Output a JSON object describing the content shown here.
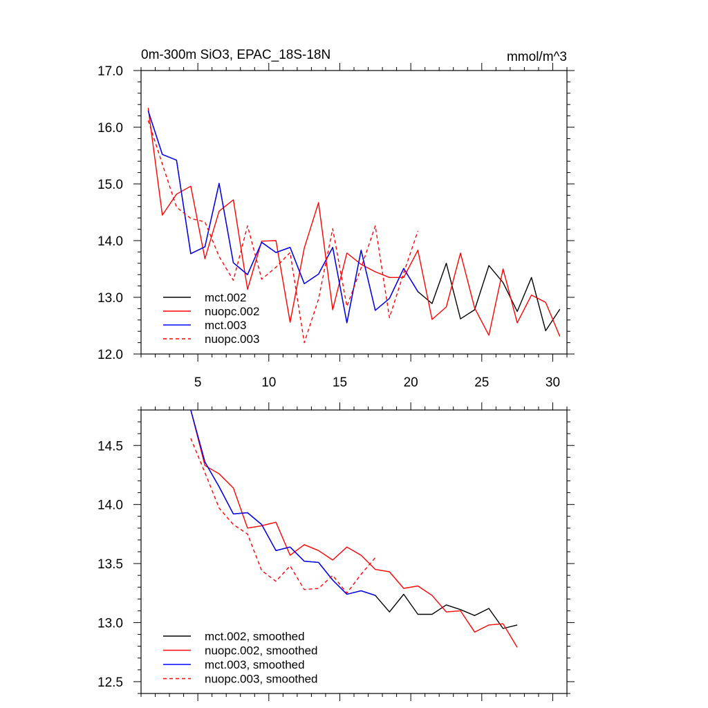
{
  "chart_data": [
    {
      "type": "line",
      "title": "0m-300m SiO3, EPAC_18S-18N",
      "units": "mmol/m^3",
      "xlim": [
        1,
        31
      ],
      "ylim": [
        12.0,
        17.0
      ],
      "xticks": [
        5,
        10,
        15,
        20,
        25,
        30
      ],
      "xtick_labels": [
        "5",
        "10",
        "15",
        "20",
        "25",
        "30"
      ],
      "yticks": [
        12.0,
        13.0,
        14.0,
        15.0,
        16.0,
        17.0
      ],
      "ytick_labels": [
        "12.0",
        "13.0",
        "14.0",
        "15.0",
        "16.0",
        "17.0"
      ],
      "legend": "bottom-left",
      "series": [
        {
          "name": "mct.002",
          "color": "#000000",
          "dash": "solid",
          "x": [
            1.5,
            2.5,
            3.5,
            4.5,
            5.5,
            6.5,
            7.5,
            8.5,
            9.5,
            10.5,
            11.5,
            12.5,
            13.5,
            14.5,
            15.5,
            16.5,
            17.5,
            18.5,
            19.5,
            20.5,
            21.5,
            22.5,
            23.5,
            24.5,
            25.5,
            26.5,
            27.5,
            28.5,
            29.5,
            30.5
          ],
          "values": [
            16.29,
            15.52,
            15.42,
            13.77,
            13.89,
            15.01,
            13.61,
            13.4,
            13.97,
            13.79,
            13.88,
            13.24,
            13.41,
            13.88,
            12.55,
            13.83,
            12.77,
            12.98,
            13.51,
            13.1,
            12.89,
            13.6,
            12.62,
            12.78,
            13.56,
            13.26,
            12.75,
            13.35,
            12.41,
            12.79
          ]
        },
        {
          "name": "nuopc.002",
          "color": "#ff0000",
          "dash": "solid",
          "x": [
            1.5,
            2.5,
            3.5,
            4.5,
            5.5,
            6.5,
            7.5,
            8.5,
            9.5,
            10.5,
            11.5,
            12.5,
            13.5,
            14.5,
            15.5,
            16.5,
            17.5,
            18.5,
            19.5,
            20.5,
            21.5,
            22.5,
            23.5,
            24.5,
            25.5,
            26.5,
            27.5,
            28.5,
            29.5,
            30.5
          ],
          "values": [
            16.34,
            14.45,
            14.82,
            14.96,
            13.68,
            14.52,
            14.72,
            13.14,
            13.99,
            14.0,
            12.56,
            13.87,
            14.67,
            12.78,
            13.78,
            13.58,
            13.45,
            13.35,
            13.35,
            13.83,
            12.61,
            12.83,
            13.78,
            12.81,
            12.33,
            13.5,
            12.55,
            13.04,
            12.91,
            12.31
          ]
        },
        {
          "name": "mct.003",
          "color": "#0000ff",
          "dash": "solid",
          "x": [
            1.5,
            2.5,
            3.5,
            4.5,
            5.5,
            6.5,
            7.5,
            8.5,
            9.5,
            10.5,
            11.5,
            12.5,
            13.5,
            14.5,
            15.5,
            16.5,
            17.5,
            18.5,
            19.5,
            20.5
          ],
          "values": [
            16.29,
            15.52,
            15.42,
            13.77,
            13.89,
            15.01,
            13.61,
            13.4,
            13.97,
            13.79,
            13.88,
            13.24,
            13.41,
            13.88,
            12.55,
            13.83,
            12.77,
            12.98,
            13.51,
            13.1
          ]
        },
        {
          "name": "nuopc.003",
          "color": "#ff0000",
          "dash": "dashed",
          "x": [
            1.5,
            2.5,
            3.5,
            4.5,
            5.5,
            6.5,
            7.5,
            8.5,
            9.5,
            10.5,
            11.5,
            12.5,
            13.5,
            14.5,
            15.5,
            16.5,
            17.5,
            18.5,
            19.5,
            20.5
          ],
          "values": [
            16.12,
            15.35,
            14.59,
            14.39,
            14.33,
            13.72,
            13.3,
            14.26,
            13.32,
            13.53,
            13.79,
            12.2,
            12.97,
            14.21,
            12.84,
            13.52,
            14.26,
            12.64,
            13.43,
            14.17
          ]
        }
      ]
    },
    {
      "type": "line",
      "title": "",
      "xlim": [
        1,
        31
      ],
      "ylim": [
        12.4,
        14.8
      ],
      "xticks": [
        5,
        10,
        15,
        20,
        25,
        30
      ],
      "yticks": [
        12.5,
        13.0,
        13.5,
        14.0,
        14.5
      ],
      "ytick_labels": [
        "12.5",
        "13.0",
        "13.5",
        "14.0",
        "14.5"
      ],
      "legend": "bottom-left",
      "series": [
        {
          "name": "mct.002, smoothed",
          "color": "#000000",
          "dash": "solid",
          "x": [
            4.5,
            5.5,
            6.5,
            7.5,
            8.5,
            9.5,
            10.5,
            11.5,
            12.5,
            13.5,
            14.5,
            15.5,
            16.5,
            17.5,
            18.5,
            19.5,
            20.5,
            21.5,
            22.5,
            23.5,
            24.5,
            25.5,
            26.5,
            27.5
          ],
          "values": [
            14.8,
            14.36,
            14.15,
            13.92,
            13.93,
            13.83,
            13.61,
            13.64,
            13.52,
            13.51,
            13.36,
            13.24,
            13.27,
            13.23,
            13.09,
            13.24,
            13.07,
            13.07,
            13.15,
            13.11,
            13.06,
            13.12,
            12.95,
            12.98
          ]
        },
        {
          "name": "nuopc.002, smoothed",
          "color": "#ff0000",
          "dash": "solid",
          "x": [
            4.5,
            5.5,
            6.5,
            7.5,
            8.5,
            9.5,
            10.5,
            11.5,
            12.5,
            13.5,
            14.5,
            15.5,
            16.5,
            17.5,
            18.5,
            19.5,
            20.5,
            21.5,
            22.5,
            23.5,
            24.5,
            25.5,
            26.5,
            27.5
          ],
          "values": [
            14.8,
            14.33,
            14.26,
            14.14,
            13.8,
            13.82,
            13.85,
            13.57,
            13.66,
            13.61,
            13.53,
            13.64,
            13.57,
            13.45,
            13.43,
            13.29,
            13.31,
            13.23,
            13.09,
            13.1,
            12.92,
            12.98,
            12.99,
            12.79
          ]
        },
        {
          "name": "mct.003, smoothed",
          "color": "#0000ff",
          "dash": "solid",
          "x": [
            4.5,
            5.5,
            6.5,
            7.5,
            8.5,
            9.5,
            10.5,
            11.5,
            12.5,
            13.5,
            14.5,
            15.5,
            16.5,
            17.5
          ],
          "values": [
            14.8,
            14.36,
            14.15,
            13.92,
            13.93,
            13.83,
            13.61,
            13.64,
            13.52,
            13.51,
            13.36,
            13.24,
            13.27,
            13.23
          ]
        },
        {
          "name": "nuopc.003, smoothed",
          "color": "#ff0000",
          "dash": "dashed",
          "x": [
            4.5,
            5.5,
            6.5,
            7.5,
            8.5,
            9.5,
            10.5,
            11.5,
            12.5,
            13.5,
            14.5,
            15.5,
            16.5,
            17.5
          ],
          "values": [
            14.56,
            14.27,
            13.97,
            13.83,
            13.75,
            13.44,
            13.35,
            13.48,
            13.28,
            13.29,
            13.4,
            13.25,
            13.41,
            13.55
          ]
        }
      ]
    }
  ]
}
